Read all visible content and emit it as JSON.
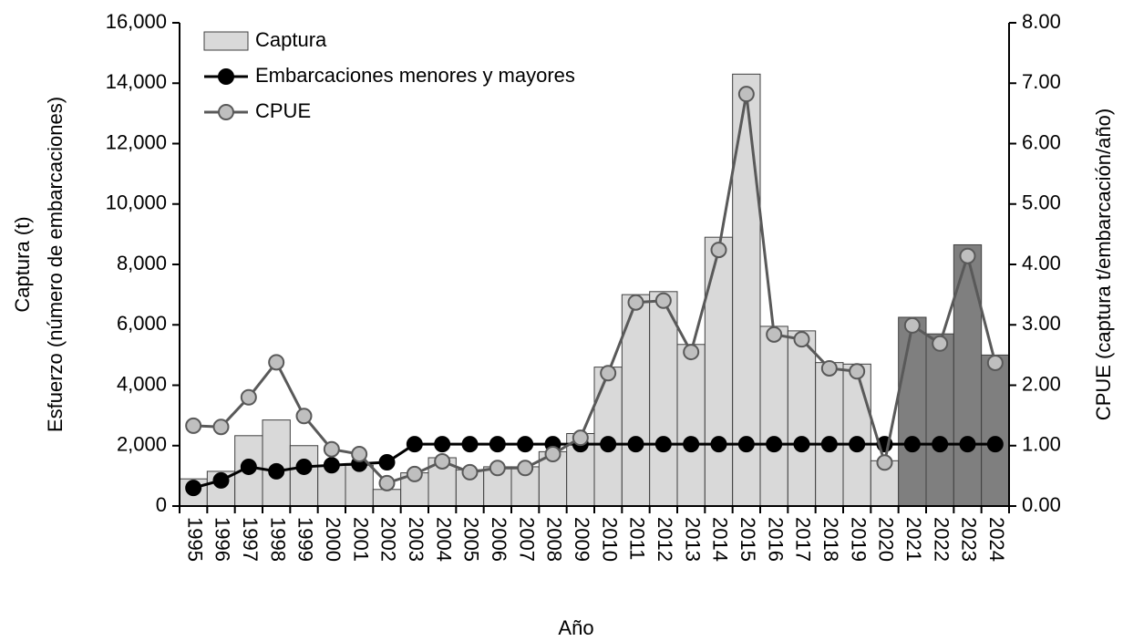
{
  "chart_data": {
    "type": "bar_line",
    "x_label": "Año",
    "y_label": [
      "Captura (t)",
      "Esfuerzo (número de embarcaciones)"
    ],
    "y2_label": "CPUE (captura t/embarcación/año)",
    "categories": [
      "1995",
      "1996",
      "1997",
      "1998",
      "1999",
      "2000",
      "2001",
      "2002",
      "2003",
      "2004",
      "2005",
      "2006",
      "2007",
      "2008",
      "2009",
      "2010",
      "2011",
      "2012",
      "2013",
      "2014",
      "2015",
      "2016",
      "2017",
      "2018",
      "2019",
      "2020",
      "2021",
      "2022",
      "2023",
      "2024"
    ],
    "series": [
      {
        "name": "Captura",
        "type": "bar",
        "color": "#d9d9d9",
        "colors": [
          "#d9d9d9",
          "#d9d9d9",
          "#d9d9d9",
          "#d9d9d9",
          "#d9d9d9",
          "#d9d9d9",
          "#d9d9d9",
          "#d9d9d9",
          "#d9d9d9",
          "#d9d9d9",
          "#d9d9d9",
          "#d9d9d9",
          "#d9d9d9",
          "#d9d9d9",
          "#d9d9d9",
          "#d9d9d9",
          "#d9d9d9",
          "#d9d9d9",
          "#d9d9d9",
          "#d9d9d9",
          "#d9d9d9",
          "#d9d9d9",
          "#d9d9d9",
          "#d9d9d9",
          "#d9d9d9",
          "#d9d9d9",
          "#7f7f7f",
          "#7f7f7f",
          "#7f7f7f",
          "#7f7f7f"
        ],
        "values": [
          900,
          1150,
          2330,
          2850,
          2000,
          1350,
          1350,
          550,
          1100,
          1600,
          1200,
          1300,
          1300,
          1800,
          2400,
          4600,
          7000,
          7100,
          5350,
          8900,
          14300,
          5950,
          5800,
          4750,
          4700,
          1500,
          6250,
          5700,
          8650,
          5000
        ]
      },
      {
        "name": "Embarcaciones menores y mayores",
        "type": "line",
        "color": "#000000",
        "marker_fill": "#000000",
        "values": [
          600,
          850,
          1300,
          1150,
          1300,
          1350,
          1400,
          1450,
          2050,
          2050,
          2050,
          2050,
          2050,
          2050,
          2050,
          2050,
          2050,
          2050,
          2050,
          2050,
          2050,
          2050,
          2050,
          2050,
          2050,
          2050,
          2050,
          2050,
          2050,
          2050
        ]
      },
      {
        "name": "CPUE",
        "type": "line",
        "axis": "y2",
        "color": "#595959",
        "marker_fill": "#bfbfbf",
        "values": [
          1.33,
          1.31,
          1.8,
          2.38,
          1.49,
          0.94,
          0.86,
          0.38,
          0.53,
          0.74,
          0.56,
          0.63,
          0.63,
          0.86,
          1.13,
          2.2,
          3.37,
          3.4,
          2.55,
          4.24,
          6.82,
          2.84,
          2.76,
          2.28,
          2.23,
          0.72,
          2.99,
          2.69,
          4.14,
          2.37
        ]
      }
    ],
    "ylim": [
      0,
      16000
    ],
    "yticks": [
      0,
      {
        "value": 2000,
        "label": "2,000"
      },
      {
        "value": 4000,
        "label": "4,000"
      },
      {
        "value": 6000,
        "label": "6,000"
      },
      {
        "value": 8000,
        "label": "8,000"
      },
      {
        "value": 10000,
        "label": "10,000"
      },
      {
        "value": 12000,
        "label": "12,000"
      },
      {
        "value": 14000,
        "label": "14,000"
      },
      {
        "value": 16000,
        "label": "16,000"
      }
    ],
    "y2lim": [
      0,
      8
    ],
    "y2ticks": [
      {
        "value": 0,
        "label": "0.00"
      },
      {
        "value": 1,
        "label": "1.00"
      },
      {
        "value": 2,
        "label": "2.00"
      },
      {
        "value": 3,
        "label": "3.00"
      },
      {
        "value": 4,
        "label": "4.00"
      },
      {
        "value": 5,
        "label": "5.00"
      },
      {
        "value": 6,
        "label": "6.00"
      },
      {
        "value": 7,
        "label": "7.00"
      },
      {
        "value": 8,
        "label": "8.00"
      }
    ],
    "legend": "top-left"
  }
}
